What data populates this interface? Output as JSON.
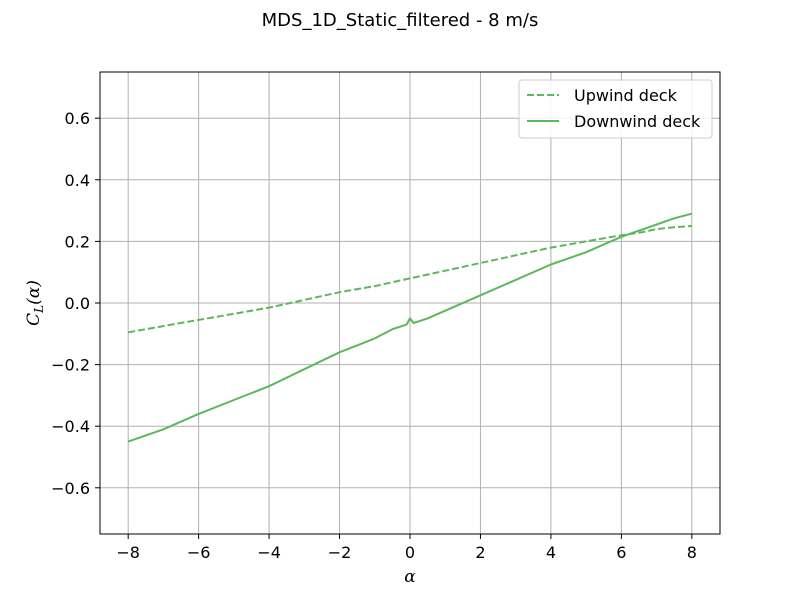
{
  "chart_data": {
    "type": "line",
    "title": "MDS_1D_Static_filtered - 8 m/s",
    "xlabel": "α",
    "ylabel": "C_L(α)",
    "ylabel_main": "C",
    "ylabel_sub": "L",
    "ylabel_tail": "(α)",
    "xlim": [
      -8.8,
      8.8
    ],
    "ylim": [
      -0.75,
      0.75
    ],
    "xticks": [
      -8,
      -6,
      -4,
      -2,
      0,
      2,
      4,
      6,
      8
    ],
    "xtick_labels": [
      "−8",
      "−6",
      "−4",
      "−2",
      "0",
      "2",
      "4",
      "6",
      "8"
    ],
    "yticks": [
      -0.6,
      -0.4,
      -0.2,
      0.0,
      0.2,
      0.4,
      0.6
    ],
    "ytick_labels": [
      "−0.6",
      "−0.4",
      "−0.2",
      "0.0",
      "0.2",
      "0.4",
      "0.6"
    ],
    "grid": true,
    "legend_position": "top-right",
    "color": "#5cb85c",
    "series": [
      {
        "name": "Upwind deck",
        "style": "dashed",
        "x": [
          -8,
          -7,
          -6,
          -5,
          -4,
          -3,
          -2,
          -1,
          0,
          1,
          2,
          3,
          4,
          5,
          6,
          6.5,
          7,
          7.5,
          8
        ],
        "y": [
          -0.095,
          -0.075,
          -0.055,
          -0.035,
          -0.015,
          0.01,
          0.035,
          0.055,
          0.08,
          0.105,
          0.13,
          0.155,
          0.18,
          0.2,
          0.22,
          0.228,
          0.24,
          0.246,
          0.25
        ]
      },
      {
        "name": "Downwind deck",
        "style": "solid",
        "x": [
          -8,
          -7,
          -6,
          -5,
          -4,
          -3,
          -2,
          -1,
          -0.5,
          -0.1,
          0,
          0.1,
          0.5,
          1,
          2,
          3,
          4,
          5,
          6,
          7,
          7.5,
          8
        ],
        "y": [
          -0.45,
          -0.41,
          -0.36,
          -0.315,
          -0.27,
          -0.215,
          -0.16,
          -0.115,
          -0.085,
          -0.07,
          -0.05,
          -0.065,
          -0.05,
          -0.025,
          0.025,
          0.075,
          0.125,
          0.165,
          0.215,
          0.255,
          0.275,
          0.29
        ]
      }
    ]
  }
}
